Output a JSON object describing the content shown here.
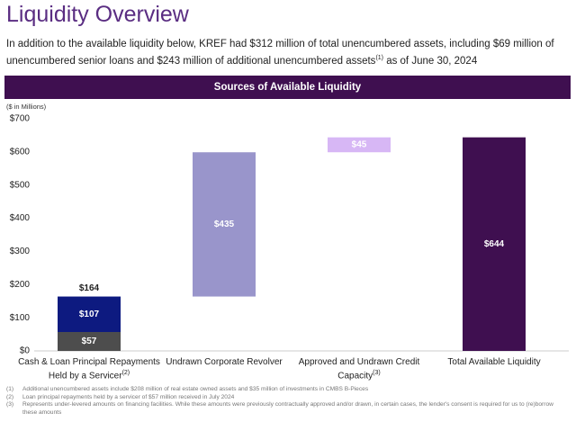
{
  "header": {
    "title": "Liquidity Overview",
    "text": "In addition to the available liquidity below, KREF had $312 million of total unencumbered assets, including $69 million of unencumbered senior loans and $243 million of additional unencumbered assets",
    "note": "(1)",
    "text_after": " as of June 30, 2024"
  },
  "banner": "Sources of Available Liquidity",
  "chart_data": {
    "type": "waterfall",
    "y_label": "($ in Millions)",
    "categories": [
      "Cash & Loan Principal Repayments Held by a Servicer",
      "Undrawn Corporate Revolver",
      "Approved and Undrawn Credit Capacity",
      "Total Available Liquidity"
    ],
    "category_notes": [
      "(2)",
      null,
      "(3)",
      null
    ],
    "values": [
      [
        57,
        107
      ],
      [
        435
      ],
      [
        45
      ],
      [
        644
      ]
    ],
    "value_labels": [
      [
        "$57",
        "$107"
      ],
      [
        "$435"
      ],
      [
        "$45"
      ],
      [
        "$644"
      ]
    ],
    "colors": [
      [
        "#4d4d4d",
        "#0d1a80"
      ],
      [
        "#9995cb"
      ],
      [
        "#d7b7f5"
      ],
      [
        "#3f0f50"
      ]
    ],
    "stack_totals": [
      164,
      null,
      null,
      null
    ],
    "stack_total_labels": [
      "$164",
      null,
      null,
      null
    ],
    "ylim": [
      0,
      700
    ],
    "yticks": [
      {
        "value": 0,
        "label": "$0"
      },
      {
        "value": 100,
        "label": "$100"
      },
      {
        "value": 200,
        "label": "$200"
      },
      {
        "value": 300,
        "label": "$300"
      },
      {
        "value": 400,
        "label": "$400"
      },
      {
        "value": 500,
        "label": "$500"
      },
      {
        "value": 600,
        "label": "$600"
      },
      {
        "value": 700,
        "label": "$700"
      }
    ],
    "grid": false
  },
  "footnotes": [
    {
      "marker": "(1)",
      "text": "Additional unencumbered assets include $208 million of real estate owned assets and $35 million of investments in CMBS B-Pieces"
    },
    {
      "marker": "(2)",
      "text": "Loan principal repayments held by a servicer of $57 million received in July 2024"
    },
    {
      "marker": "(3)",
      "text": "Represents under-levered amounts on financing facilities. While these amounts were previously contractually approved and/or drawn, in certain cases, the lender's consent is required for us to (re)borrow these amounts"
    }
  ]
}
